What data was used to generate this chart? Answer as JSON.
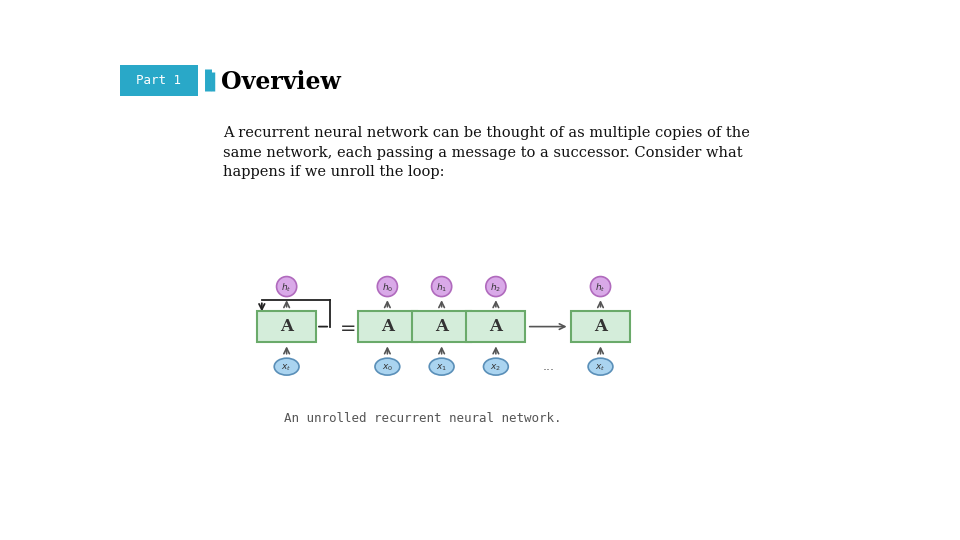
{
  "bg_color": "#ffffff",
  "header_bg_color": "#29a8c8",
  "header_text": "Part 1",
  "header_text_color": "#ffffff",
  "divider_color1": "#29a8c8",
  "divider_color2": "#29a8c8",
  "title_text": "Overview",
  "title_color": "#000000",
  "body_text": "A recurrent neural network can be thought of as multiple copies of the\nsame network, each passing a message to a successor. Consider what\nhappens if we unroll the loop:",
  "body_text_color": "#111111",
  "caption_text": "An unrolled recurrent neural network.",
  "caption_color": "#555555",
  "box_fill": "#d4edda",
  "box_edge": "#6aaa6a",
  "h_circle_fill": "#d9a9e8",
  "h_circle_edge": "#b06abd",
  "x_circle_fill": "#aad4f0",
  "x_circle_edge": "#5a8fb8",
  "arrow_color": "#555555",
  "loop_color": "#222222",
  "eq_color": "#333333",
  "dot_color": "#555555"
}
